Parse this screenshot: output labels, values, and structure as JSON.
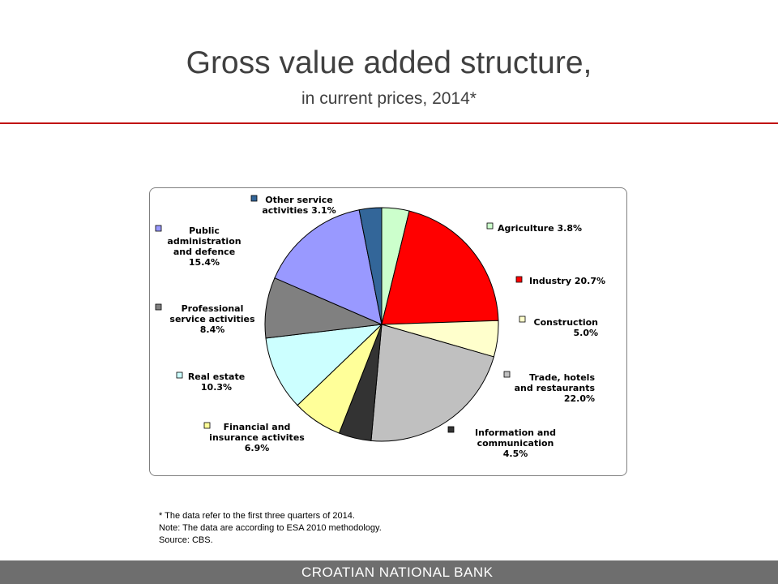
{
  "slide": {
    "title": "Gross value added structure,",
    "subtitle": "in current prices, 2014*",
    "accent_color": "#c00000",
    "footer_color": "#6e6e6e"
  },
  "chart_data": {
    "type": "pie",
    "legend": "none",
    "slices": [
      {
        "label": [
          "Agriculture 3.8%"
        ],
        "value": 3.8,
        "color": "#ccffcc"
      },
      {
        "label": [
          "Industry 20.7%"
        ],
        "value": 20.7,
        "color": "#ff0000"
      },
      {
        "label": [
          "Construction",
          "5.0%"
        ],
        "value": 5.0,
        "color": "#ffffcc"
      },
      {
        "label": [
          "Trade, hotels",
          "and restaurants",
          "22.0%"
        ],
        "value": 22.0,
        "color": "#c0c0c0"
      },
      {
        "label": [
          "Information and",
          "communication",
          "4.5%"
        ],
        "value": 4.5,
        "color": "#333333"
      },
      {
        "label": [
          "Financial and",
          "insurance activites",
          "6.9%"
        ],
        "value": 6.9,
        "color": "#ffff99"
      },
      {
        "label": [
          "Real estate",
          "10.3%"
        ],
        "value": 10.3,
        "color": "#ccffff"
      },
      {
        "label": [
          "Professional",
          "service activities",
          "8.4%"
        ],
        "value": 8.4,
        "color": "#808080"
      },
      {
        "label": [
          "Public",
          "administration",
          "and defence",
          "15.4%"
        ],
        "value": 15.4,
        "color": "#9999ff"
      },
      {
        "label": [
          "Other service",
          "activities 3.1%"
        ],
        "value": 3.1,
        "color": "#336699"
      }
    ]
  },
  "notes": [
    "* The data refer to the first three quarters of 2014.",
    "Note: The data are according to ESA 2010 methodology.",
    "Source: CBS."
  ],
  "footer": {
    "text": "CROATIAN NATIONAL BANK"
  }
}
